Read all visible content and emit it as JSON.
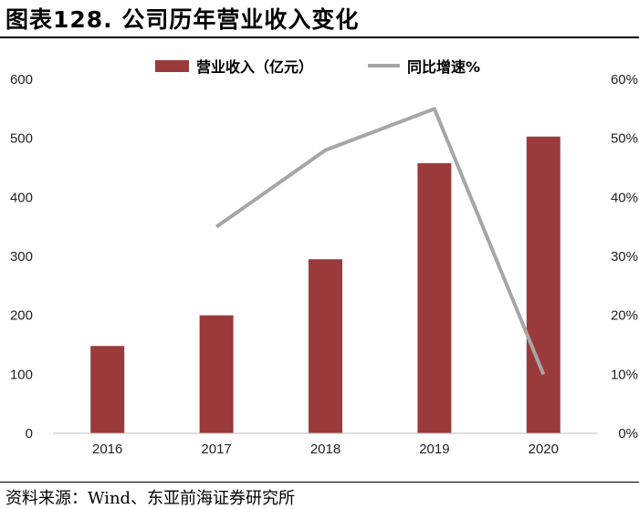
{
  "figure_title": "图表128. 公司历年营业收入变化",
  "source": "资料来源：Wind、东亚前海证券研究所",
  "colors": {
    "bar": "#9B3A3A",
    "line": "#A6A6A6",
    "axis": "#BFBFBF"
  },
  "chart_data": {
    "type": "bar",
    "categories": [
      "2016",
      "2017",
      "2018",
      "2019",
      "2020"
    ],
    "series": [
      {
        "name": "营业收入（亿元）",
        "type": "bar",
        "axis": "left",
        "values": [
          148,
          200,
          295,
          458,
          503
        ]
      },
      {
        "name": "同比增速%",
        "type": "line",
        "axis": "right",
        "values": [
          null,
          35,
          48,
          55,
          10
        ]
      }
    ],
    "y_left": {
      "ticks": [
        "0",
        "100",
        "200",
        "300",
        "400",
        "500",
        "600"
      ],
      "ylim": [
        0,
        600
      ]
    },
    "y_right": {
      "ticks": [
        "0%",
        "10%",
        "20%",
        "30%",
        "40%",
        "50%",
        "60%"
      ],
      "ylim": [
        0,
        60
      ]
    },
    "legend_position": "top-center",
    "grid": false
  }
}
